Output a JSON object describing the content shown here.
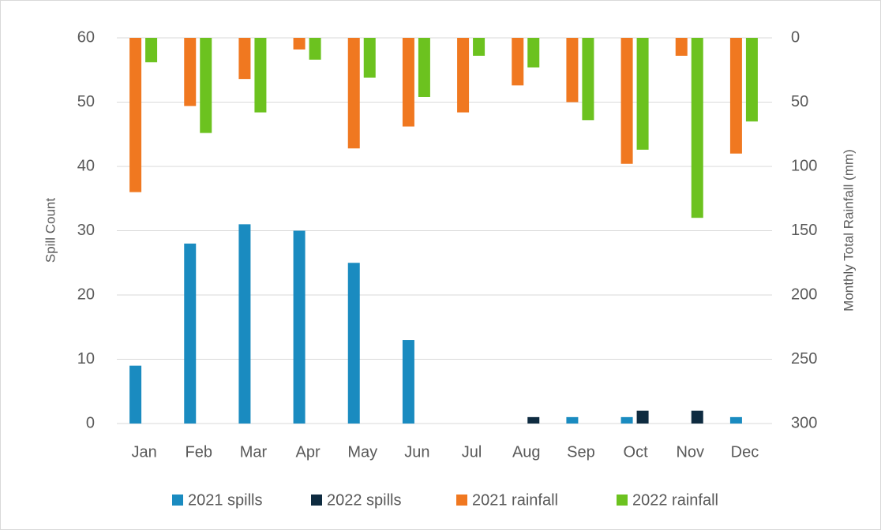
{
  "chart_data": {
    "type": "bar",
    "categories": [
      "Jan",
      "Feb",
      "Mar",
      "Apr",
      "May",
      "Jun",
      "Jul",
      "Aug",
      "Sep",
      "Oct",
      "Nov",
      "Dec"
    ],
    "y_label": "Spill Count",
    "y2_label": "Monthly Total Rainfall (mm)",
    "ylim": [
      0,
      60
    ],
    "yticks": [
      0,
      10,
      20,
      30,
      40,
      50,
      60
    ],
    "y2lim": [
      300,
      0
    ],
    "y2ticks": [
      0,
      50,
      100,
      150,
      200,
      250,
      300
    ],
    "grid": true,
    "legend": "bottom",
    "series": [
      {
        "name": "2021 spills",
        "color": "#1a8bc0",
        "axis": "y",
        "values": [
          9,
          28,
          31,
          30,
          25,
          13,
          0,
          0,
          1,
          1,
          0,
          1
        ]
      },
      {
        "name": "2022 spills",
        "color": "#0e2b40",
        "axis": "y",
        "values": [
          0,
          0,
          0,
          0,
          0,
          0,
          0,
          1,
          0,
          2,
          2,
          0
        ]
      },
      {
        "name": "2021 rainfall",
        "color": "#f07820",
        "axis": "y2",
        "values": [
          120,
          53,
          32,
          9,
          86,
          69,
          58,
          37,
          50,
          98,
          14,
          90
        ]
      },
      {
        "name": "2022 rainfall",
        "color": "#6cc21f",
        "axis": "y2",
        "values": [
          19,
          74,
          58,
          17,
          31,
          46,
          14,
          23,
          64,
          87,
          140,
          65
        ]
      }
    ]
  }
}
